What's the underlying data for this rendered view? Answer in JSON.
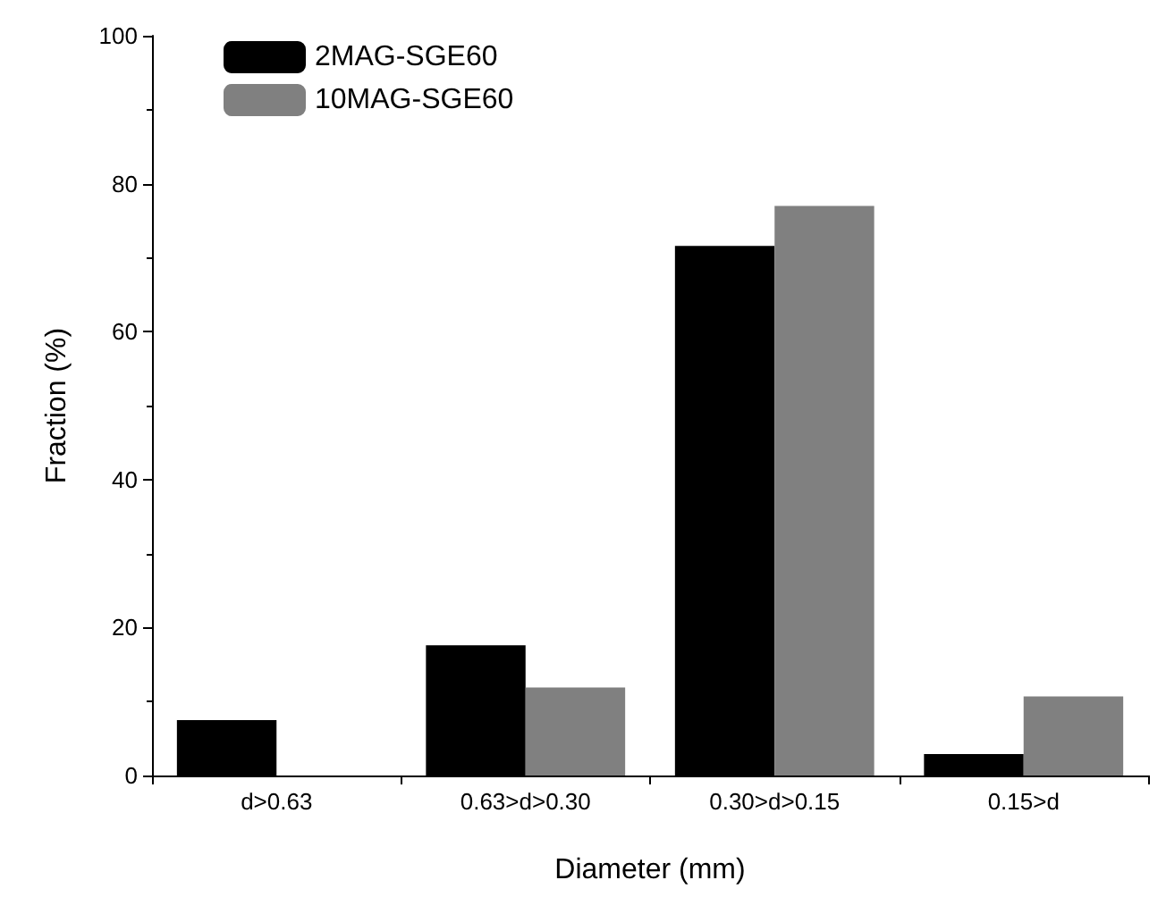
{
  "chart_data": {
    "type": "bar",
    "xlabel": "Diameter (mm)",
    "ylabel": "Fraction (%)",
    "categories": [
      "d>0.63",
      "0.63>d>0.30",
      "0.30>d>0.15",
      "0.15>d"
    ],
    "series": [
      {
        "name": "2MAG-SGE60",
        "color": "#000000",
        "values": [
          7.5,
          17.6,
          71.6,
          2.9
        ]
      },
      {
        "name": "10MAG-SGE60",
        "color": "#808080",
        "values": [
          0,
          11.9,
          77.0,
          10.7
        ]
      }
    ],
    "ylim": [
      0,
      100
    ],
    "yticks": [
      0,
      20,
      40,
      60,
      80,
      100
    ],
    "grid": false,
    "legend": "top left"
  }
}
